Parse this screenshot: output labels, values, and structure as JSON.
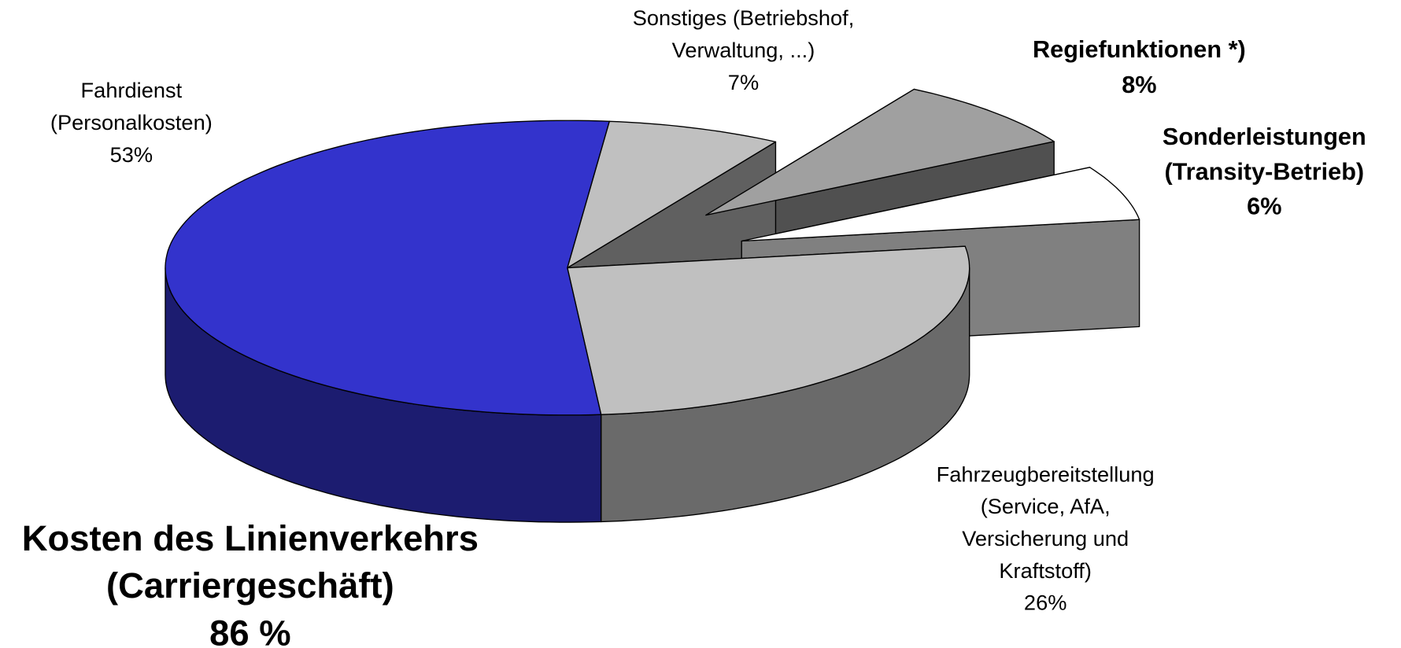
{
  "chart_data": {
    "type": "pie3d",
    "categories": [
      [
        "Sonstiges (Betriebshof,",
        "Verwaltung, ...)"
      ],
      [
        "Regiefunktionen *)"
      ],
      [
        "Sonderleistungen",
        "(Transity-Betrieb)"
      ],
      [
        "Fahrzeugbereitstellung",
        "(Service, AfA,",
        "Versicherung und",
        "Kraftstoff)"
      ],
      [
        "Fahrdienst",
        "(Personalkosten)"
      ]
    ],
    "values": [
      7,
      8,
      6,
      26,
      53
    ],
    "value_labels": [
      "7%",
      "8%",
      "6%",
      "26%",
      "53%"
    ],
    "colors": [
      "#c0c0c0",
      "#a0a0a0",
      "#ffffff",
      "#c0c0c0",
      "#3333cc"
    ],
    "explode": [
      false,
      true,
      true,
      false,
      false
    ],
    "annotation": [
      "Kosten des Linienverkehrs",
      "(Carriergeschäft)",
      "86 %"
    ]
  }
}
